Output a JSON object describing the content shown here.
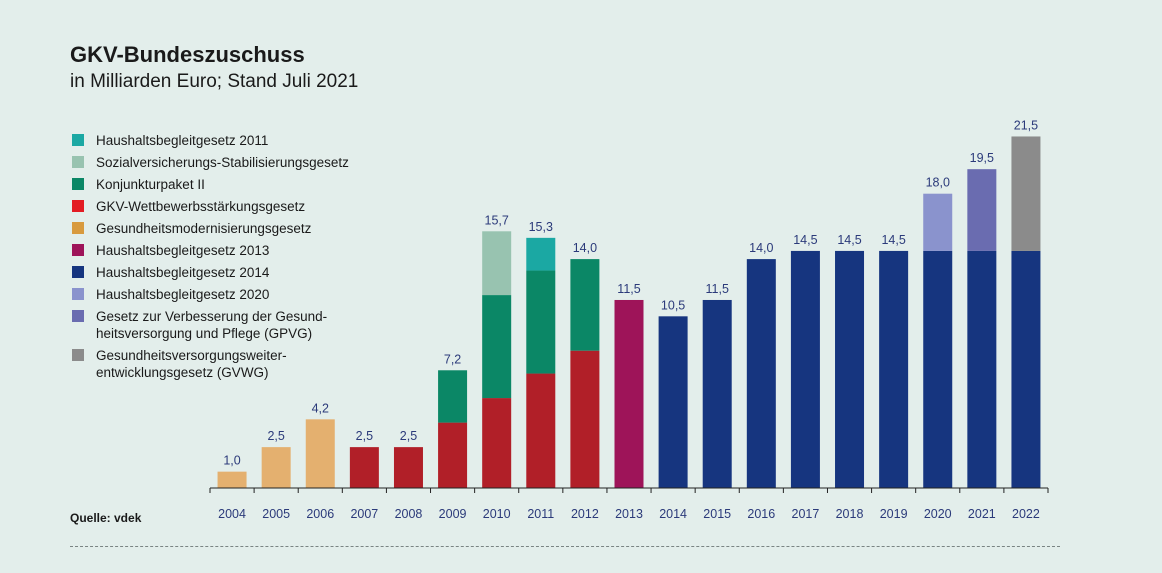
{
  "title": "GKV-Bundeszuschuss",
  "subtitle": "in Milliarden Euro; Stand Juli 2021",
  "source": "Quelle: vdek",
  "colors": {
    "background": "#e3eeeb",
    "label": "#2b3a7a",
    "axis": "#222222"
  },
  "legend": [
    {
      "label": "Haushaltsbegleitgesetz 2011",
      "color": "#1ba8a3"
    },
    {
      "label": "Sozialversicherungs-Stabilisierungsgesetz",
      "color": "#98c3b0"
    },
    {
      "label": "Konjunkturpaket II",
      "color": "#0b8766"
    },
    {
      "label": "GKV-Wettbewerbsstärkungsgesetz",
      "color": "#e31c23"
    },
    {
      "label": "Gesundheitsmodernisierungsgesetz",
      "color": "#d89a3e"
    },
    {
      "label": "Haushaltsbegleitgesetz 2013",
      "color": "#9e1459"
    },
    {
      "label": "Haushaltsbegleitgesetz 2014",
      "color": "#16357f"
    },
    {
      "label": "Haushaltsbegleitgesetz 2020",
      "color": "#8a93cd"
    },
    {
      "label": "Gesetz zur Verbesserung der Gesund-",
      "label2": "heitsversorgung und Pflege (GPVG)",
      "color": "#6a6cb0"
    },
    {
      "label": "Gesundheitsversorgungsweiter-",
      "label2": "entwicklungsgesetz (GVWG)",
      "color": "#8b8b8b"
    }
  ],
  "chart_data": {
    "type": "bar",
    "stacked": true,
    "title": "GKV-Bundeszuschuss",
    "ylabel": "in Milliarden Euro",
    "ylim": [
      0,
      23
    ],
    "categories": [
      "2004",
      "2005",
      "2006",
      "2007",
      "2008",
      "2009",
      "2010",
      "2011",
      "2012",
      "2013",
      "2014",
      "2015",
      "2016",
      "2017",
      "2018",
      "2019",
      "2020",
      "2021",
      "2022"
    ],
    "totals": [
      "1,0",
      "2,5",
      "4,2",
      "2,5",
      "2,5",
      "7,2",
      "15,7",
      "15,3",
      "14,0",
      "11,5",
      "10,5",
      "11,5",
      "14,0",
      "14,5",
      "14,5",
      "14,5",
      "18,0",
      "19,5",
      "21,5"
    ],
    "bars": [
      {
        "segments": [
          {
            "value": 1.0,
            "color": "#e4b06f"
          }
        ]
      },
      {
        "segments": [
          {
            "value": 2.5,
            "color": "#e4b06f"
          }
        ]
      },
      {
        "segments": [
          {
            "value": 4.2,
            "color": "#e4b06f"
          }
        ]
      },
      {
        "segments": [
          {
            "value": 2.5,
            "color": "#b11f28"
          }
        ]
      },
      {
        "segments": [
          {
            "value": 2.5,
            "color": "#b11f28"
          }
        ]
      },
      {
        "segments": [
          {
            "value": 4.0,
            "color": "#b11f28"
          },
          {
            "value": 3.2,
            "color": "#0b8766"
          }
        ]
      },
      {
        "segments": [
          {
            "value": 5.5,
            "color": "#b11f28"
          },
          {
            "value": 6.3,
            "color": "#0b8766"
          },
          {
            "value": 3.9,
            "color": "#98c3b0"
          }
        ]
      },
      {
        "segments": [
          {
            "value": 7.0,
            "color": "#b11f28"
          },
          {
            "value": 6.3,
            "color": "#0b8766"
          },
          {
            "value": 2.0,
            "color": "#1ba8a3"
          }
        ]
      },
      {
        "segments": [
          {
            "value": 8.4,
            "color": "#b11f28"
          },
          {
            "value": 5.6,
            "color": "#0b8766"
          }
        ]
      },
      {
        "segments": [
          {
            "value": 11.5,
            "color": "#9e1459"
          }
        ]
      },
      {
        "segments": [
          {
            "value": 10.5,
            "color": "#16357f"
          }
        ]
      },
      {
        "segments": [
          {
            "value": 11.5,
            "color": "#16357f"
          }
        ]
      },
      {
        "segments": [
          {
            "value": 14.0,
            "color": "#16357f"
          }
        ]
      },
      {
        "segments": [
          {
            "value": 14.5,
            "color": "#16357f"
          }
        ]
      },
      {
        "segments": [
          {
            "value": 14.5,
            "color": "#16357f"
          }
        ]
      },
      {
        "segments": [
          {
            "value": 14.5,
            "color": "#16357f"
          }
        ]
      },
      {
        "segments": [
          {
            "value": 14.5,
            "color": "#16357f"
          },
          {
            "value": 3.5,
            "color": "#8a93cd"
          }
        ]
      },
      {
        "segments": [
          {
            "value": 14.5,
            "color": "#16357f"
          },
          {
            "value": 5.0,
            "color": "#6a6cb0"
          }
        ]
      },
      {
        "segments": [
          {
            "value": 14.5,
            "color": "#16357f"
          },
          {
            "value": 7.0,
            "color": "#8b8b8b"
          }
        ]
      }
    ]
  }
}
